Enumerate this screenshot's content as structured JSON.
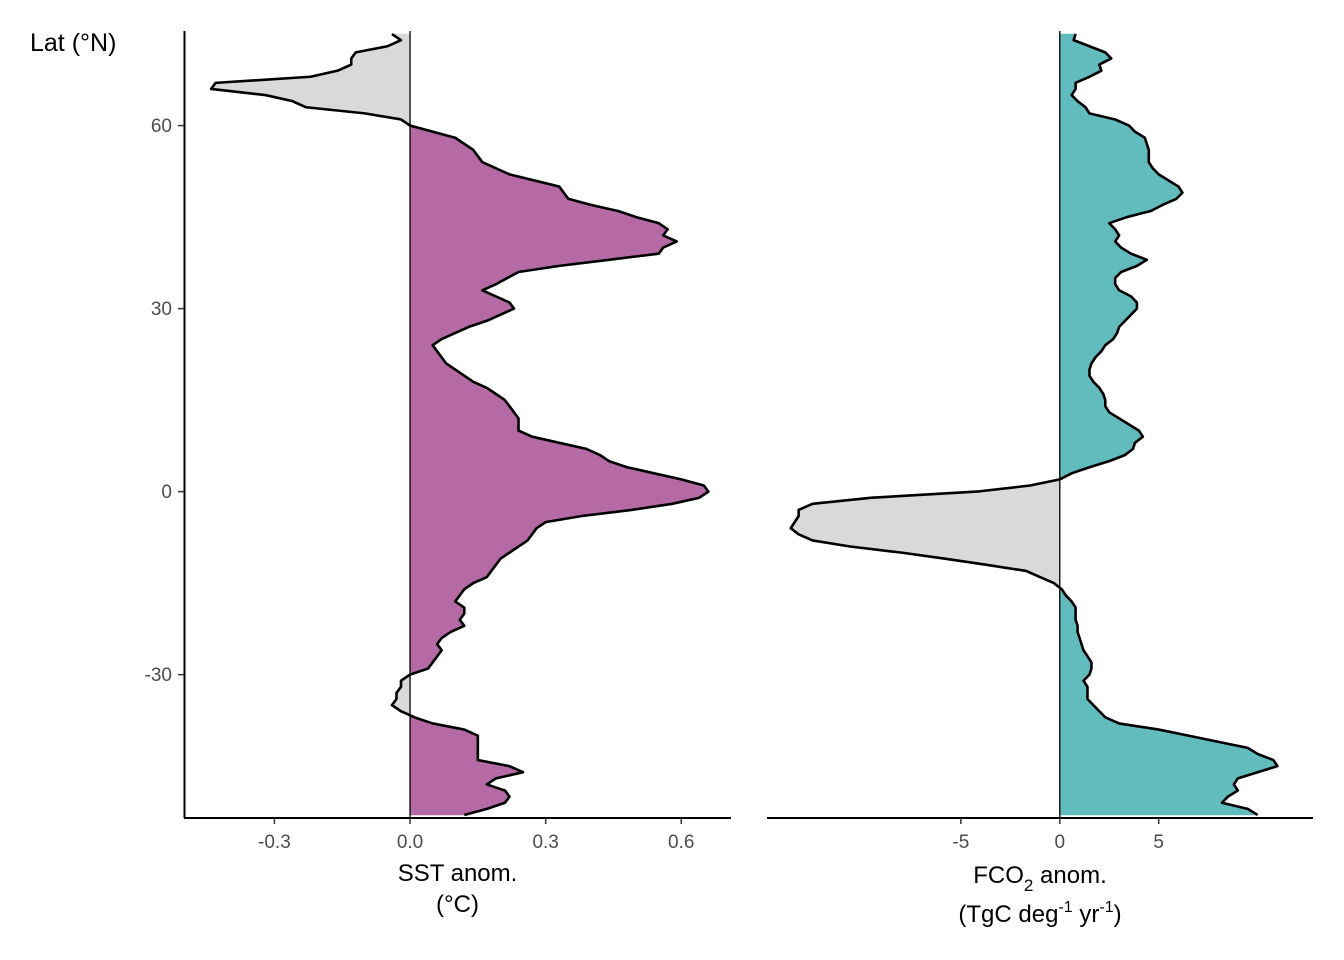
{
  "chart_data": {
    "type": "area",
    "orientation": "horizontal-profile",
    "y_axis": {
      "label": "Lat (°N)",
      "ticks": [
        60,
        30,
        0,
        -30
      ],
      "tick_labels": [
        "60",
        "30",
        "0",
        "-30"
      ],
      "range": [
        -53.5,
        75.5
      ]
    },
    "panels": [
      {
        "id": "sst",
        "xlabel_line1": "SST anom.",
        "xlabel_line2": "(°C)",
        "ticks": [
          -0.3,
          0.0,
          0.3,
          0.6
        ],
        "tick_labels": [
          "-0.3",
          "0.0",
          "0.3",
          "0.6"
        ],
        "xlim": [
          -0.5,
          0.71
        ],
        "positive_color": "#b56aa5",
        "negative_color": "#d9d9d9",
        "series": {
          "lat": [
            75,
            74,
            73,
            72,
            71,
            70,
            69,
            68,
            67,
            66,
            65,
            64,
            63,
            62,
            61,
            60,
            58,
            56,
            54,
            52,
            50,
            48,
            47,
            46,
            45,
            44,
            43,
            42,
            41,
            40,
            39,
            38,
            37,
            36,
            34,
            33,
            32,
            31,
            30,
            29,
            28,
            27,
            26,
            25,
            24,
            23,
            22,
            21,
            20,
            19,
            18,
            17,
            16,
            15,
            14,
            13,
            12,
            11,
            10,
            9,
            8,
            7,
            6,
            5,
            4,
            3,
            2,
            1,
            0,
            -1,
            -2,
            -3,
            -4,
            -5,
            -6,
            -7,
            -8,
            -9,
            -10,
            -11,
            -12,
            -13,
            -14,
            -15,
            -16,
            -17,
            -18,
            -19,
            -20,
            -21,
            -22,
            -23,
            -24,
            -25,
            -26,
            -27,
            -28,
            -29,
            -30,
            -31,
            -32,
            -33,
            -34,
            -35,
            -36,
            -37,
            -38,
            -39,
            -40,
            -41,
            -42,
            -43,
            -44,
            -45,
            -46,
            -47,
            -48,
            -49,
            -50,
            -51,
            -52,
            -53
          ],
          "values": [
            -0.04,
            -0.02,
            -0.05,
            -0.12,
            -0.13,
            -0.13,
            -0.16,
            -0.22,
            -0.43,
            -0.44,
            -0.32,
            -0.26,
            -0.23,
            -0.1,
            -0.02,
            0.0,
            0.1,
            0.14,
            0.16,
            0.22,
            0.33,
            0.35,
            0.4,
            0.46,
            0.5,
            0.55,
            0.57,
            0.56,
            0.59,
            0.56,
            0.55,
            0.44,
            0.33,
            0.24,
            0.19,
            0.16,
            0.19,
            0.22,
            0.23,
            0.2,
            0.17,
            0.13,
            0.1,
            0.07,
            0.05,
            0.06,
            0.07,
            0.08,
            0.1,
            0.12,
            0.14,
            0.17,
            0.19,
            0.21,
            0.22,
            0.23,
            0.24,
            0.24,
            0.24,
            0.27,
            0.33,
            0.39,
            0.42,
            0.44,
            0.48,
            0.54,
            0.6,
            0.65,
            0.66,
            0.64,
            0.58,
            0.49,
            0.38,
            0.3,
            0.28,
            0.27,
            0.26,
            0.24,
            0.22,
            0.2,
            0.19,
            0.18,
            0.17,
            0.14,
            0.12,
            0.11,
            0.1,
            0.12,
            0.12,
            0.11,
            0.12,
            0.09,
            0.07,
            0.06,
            0.07,
            0.06,
            0.05,
            0.04,
            0.0,
            -0.02,
            -0.02,
            -0.03,
            -0.03,
            -0.04,
            -0.02,
            0.01,
            0.05,
            0.12,
            0.15,
            0.15,
            0.15,
            0.15,
            0.15,
            0.22,
            0.25,
            0.19,
            0.17,
            0.21,
            0.22,
            0.21,
            0.17,
            0.12
          ]
        }
      },
      {
        "id": "fco2",
        "xlabel_line1": "FCO",
        "xlabel_sub": "2",
        "xlabel_line1_rest": " anom.",
        "xlabel_line2_a": "(TgC deg",
        "xlabel_sup1": "-1",
        "xlabel_line2_b": " yr",
        "xlabel_sup2": "-1",
        "xlabel_line2_c": ")",
        "ticks": [
          -5,
          0,
          5
        ],
        "tick_labels": [
          "-5",
          "0",
          "5"
        ],
        "xlim": [
          -14.8,
          12.8
        ],
        "positive_color": "#62bcbd",
        "negative_color": "#d9d9d9",
        "series": {
          "lat": [
            75,
            74,
            73,
            72,
            71,
            70,
            69,
            68,
            67,
            66,
            65,
            64,
            63,
            62,
            61,
            60,
            59,
            58,
            57,
            56,
            55,
            54,
            53,
            52,
            51,
            50,
            49,
            48,
            47,
            46,
            45,
            44,
            43,
            42,
            41,
            40,
            39,
            38,
            37,
            36,
            35,
            34,
            33,
            32,
            31,
            30,
            29,
            28,
            27,
            26,
            25,
            24,
            23,
            22,
            21,
            20,
            19,
            18,
            17,
            16,
            15,
            14,
            13,
            12,
            11,
            10,
            9,
            8,
            7,
            6,
            5,
            4,
            3,
            2,
            1,
            0,
            -1,
            -2,
            -3,
            -4,
            -5,
            -6,
            -7,
            -8,
            -9,
            -10,
            -11,
            -12,
            -13,
            -14,
            -15,
            -16,
            -17,
            -18,
            -19,
            -20,
            -21,
            -22,
            -23,
            -24,
            -25,
            -26,
            -27,
            -28,
            -29,
            -30,
            -31,
            -32,
            -33,
            -34,
            -35,
            -36,
            -37,
            -38,
            -39,
            -40,
            -41,
            -42,
            -43,
            -44,
            -45,
            -46,
            -47,
            -48,
            -49,
            -50,
            -51,
            -52,
            -53
          ],
          "values": [
            0.8,
            0.7,
            1.5,
            2.3,
            2.6,
            2.0,
            2.1,
            1.5,
            0.8,
            0.8,
            0.6,
            0.9,
            1.3,
            1.5,
            2.8,
            3.5,
            3.8,
            4.3,
            4.4,
            4.5,
            4.5,
            4.5,
            4.7,
            5.0,
            5.5,
            6.0,
            6.2,
            5.9,
            5.2,
            4.6,
            3.4,
            2.5,
            2.8,
            3.0,
            2.8,
            3.1,
            3.6,
            4.4,
            3.9,
            3.1,
            2.8,
            2.8,
            3.0,
            3.6,
            3.9,
            3.9,
            3.6,
            3.3,
            3.0,
            2.9,
            2.7,
            2.3,
            2.1,
            1.8,
            1.6,
            1.5,
            1.5,
            1.7,
            2.0,
            2.2,
            2.3,
            2.3,
            2.5,
            3.0,
            3.5,
            4.0,
            4.2,
            3.8,
            3.7,
            3.3,
            2.5,
            1.5,
            0.6,
            0.0,
            -1.5,
            -4.2,
            -9.5,
            -12.5,
            -13.2,
            -13.2,
            -13.4,
            -13.6,
            -13.2,
            -12.5,
            -10.6,
            -8.0,
            -5.8,
            -3.7,
            -1.7,
            -1.0,
            -0.3,
            0.1,
            0.3,
            0.6,
            0.8,
            0.8,
            0.8,
            0.9,
            0.9,
            1.0,
            1.1,
            1.2,
            1.4,
            1.6,
            1.6,
            1.5,
            1.2,
            1.4,
            1.4,
            1.4,
            1.7,
            2.0,
            2.3,
            3.0,
            5.0,
            6.5,
            8.0,
            9.5,
            10.0,
            10.8,
            11.0,
            10.0,
            9.0,
            8.8,
            9.0,
            8.5,
            8.2,
            9.5,
            10.0
          ]
        }
      }
    ]
  }
}
